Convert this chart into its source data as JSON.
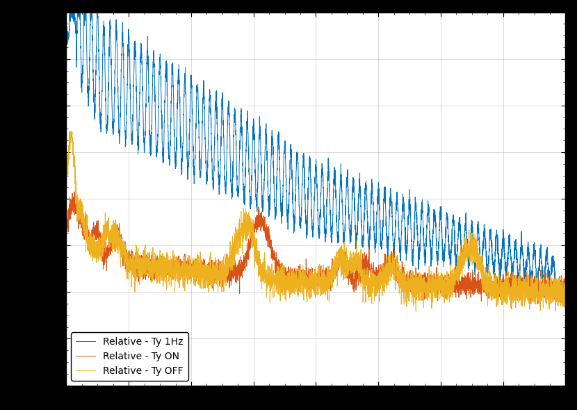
{
  "title": "",
  "xlabel": "",
  "ylabel": "",
  "line1_label": "Relative - Ty 1Hz",
  "line2_label": "Relative - Ty ON",
  "line3_label": "Relative - Ty OFF",
  "line1_color": "#0072BD",
  "line2_color": "#D95319",
  "line3_color": "#EDB120",
  "background_color": "#FFFFFF",
  "grid_color": "#AAAAAA",
  "xmin": 0.0,
  "xmax": 1.0,
  "ymin": 0.0,
  "ymax": 1.0,
  "legend_loc": "lower left",
  "figsize": [
    8.3,
    5.9
  ],
  "dpi": 100,
  "outer_bg": "#000000"
}
